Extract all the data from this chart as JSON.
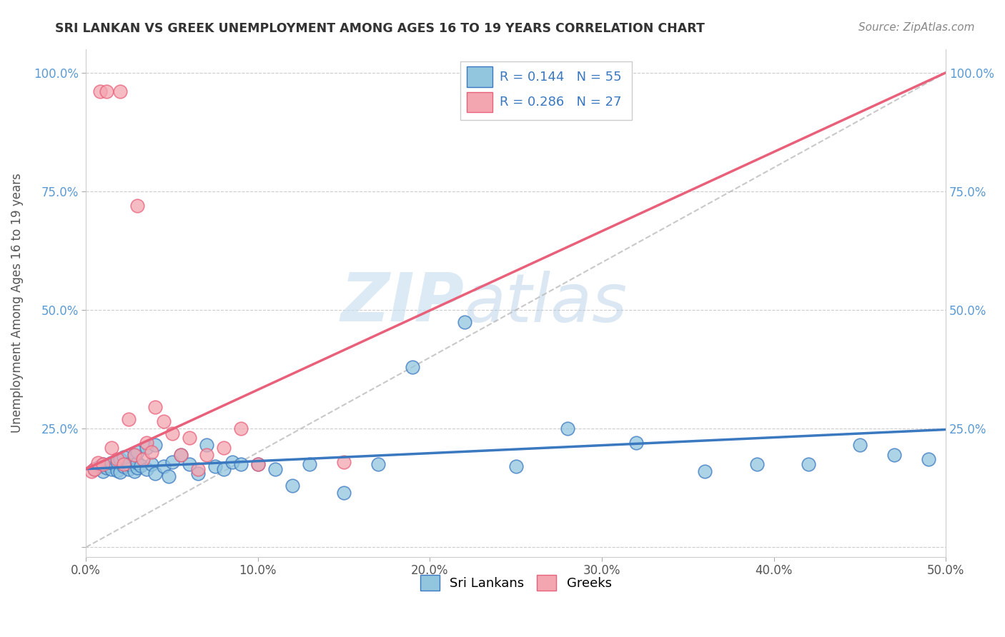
{
  "title": "SRI LANKAN VS GREEK UNEMPLOYMENT AMONG AGES 16 TO 19 YEARS CORRELATION CHART",
  "source": "Source: ZipAtlas.com",
  "ylabel": "Unemployment Among Ages 16 to 19 years",
  "xlim": [
    0.0,
    0.5
  ],
  "ylim": [
    -0.02,
    1.05
  ],
  "xticks": [
    0.0,
    0.1,
    0.2,
    0.3,
    0.4,
    0.5
  ],
  "yticks": [
    0.0,
    0.25,
    0.5,
    0.75,
    1.0
  ],
  "xticklabels": [
    "0.0%",
    "10.0%",
    "20.0%",
    "30.0%",
    "40.0%",
    "50.0%"
  ],
  "yticklabels": [
    "",
    "25.0%",
    "50.0%",
    "75.0%",
    "100.0%"
  ],
  "blue_color": "#92C5DE",
  "pink_color": "#F4A6B0",
  "blue_line_color": "#3A78C0",
  "pink_line_color": "#E8607A",
  "blue_R": 0.144,
  "blue_N": 55,
  "pink_R": 0.286,
  "pink_N": 27,
  "legend_label_blue": "Sri Lankans",
  "legend_label_pink": "Greeks",
  "background_color": "#ffffff",
  "grid_color": "#cccccc",
  "watermark_zip": "ZIP",
  "watermark_atlas": "atlas",
  "blue_trend_x0": 0.0,
  "blue_trend_y0": 0.165,
  "blue_trend_x1": 0.5,
  "blue_trend_y1": 0.248,
  "pink_trend_x0": 0.0,
  "pink_trend_y0": 0.165,
  "pink_trend_x1": 0.5,
  "pink_trend_y1": 1.0,
  "blue_scatter_x": [
    0.005,
    0.008,
    0.01,
    0.01,
    0.012,
    0.013,
    0.015,
    0.015,
    0.018,
    0.018,
    0.02,
    0.02,
    0.022,
    0.022,
    0.025,
    0.025,
    0.028,
    0.028,
    0.03,
    0.03,
    0.03,
    0.032,
    0.035,
    0.035,
    0.038,
    0.04,
    0.04,
    0.045,
    0.048,
    0.05,
    0.055,
    0.06,
    0.065,
    0.07,
    0.075,
    0.08,
    0.085,
    0.09,
    0.1,
    0.11,
    0.12,
    0.13,
    0.15,
    0.17,
    0.19,
    0.22,
    0.25,
    0.28,
    0.32,
    0.36,
    0.39,
    0.42,
    0.45,
    0.47,
    0.49
  ],
  "blue_scatter_y": [
    0.165,
    0.17,
    0.16,
    0.175,
    0.168,
    0.172,
    0.165,
    0.178,
    0.162,
    0.18,
    0.158,
    0.185,
    0.17,
    0.19,
    0.165,
    0.175,
    0.16,
    0.195,
    0.168,
    0.178,
    0.2,
    0.172,
    0.165,
    0.21,
    0.175,
    0.155,
    0.215,
    0.17,
    0.15,
    0.18,
    0.195,
    0.175,
    0.155,
    0.215,
    0.17,
    0.165,
    0.18,
    0.175,
    0.175,
    0.165,
    0.13,
    0.175,
    0.115,
    0.175,
    0.38,
    0.475,
    0.17,
    0.25,
    0.22,
    0.16,
    0.175,
    0.175,
    0.215,
    0.195,
    0.185
  ],
  "pink_scatter_x": [
    0.003,
    0.005,
    0.007,
    0.008,
    0.01,
    0.012,
    0.015,
    0.018,
    0.02,
    0.022,
    0.025,
    0.028,
    0.03,
    0.033,
    0.035,
    0.038,
    0.04,
    0.045,
    0.05,
    0.055,
    0.06,
    0.065,
    0.07,
    0.08,
    0.09,
    0.1,
    0.15
  ],
  "pink_scatter_y": [
    0.16,
    0.165,
    0.178,
    0.96,
    0.175,
    0.96,
    0.21,
    0.185,
    0.96,
    0.175,
    0.27,
    0.195,
    0.72,
    0.185,
    0.22,
    0.2,
    0.295,
    0.265,
    0.24,
    0.195,
    0.23,
    0.165,
    0.195,
    0.21,
    0.25,
    0.175,
    0.18
  ]
}
